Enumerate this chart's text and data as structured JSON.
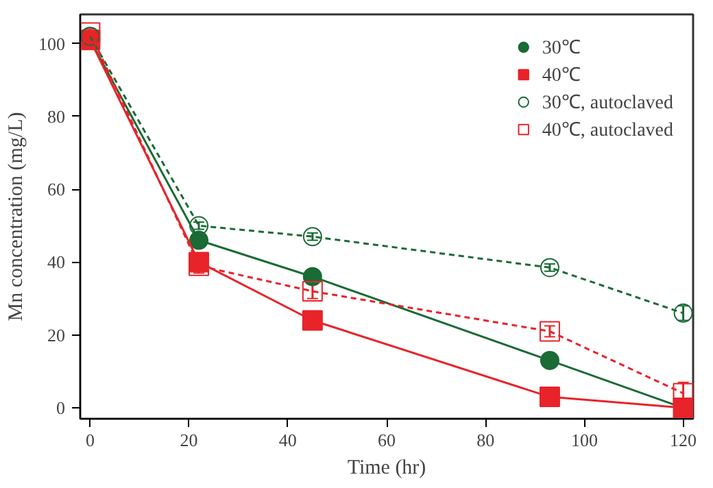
{
  "chart_data": {
    "type": "line",
    "xlabel": "Time (hr)",
    "ylabel": "Mn concentration (mg/L)",
    "xlim": [
      -2,
      122
    ],
    "xticks": [
      0,
      20,
      40,
      60,
      80,
      100,
      120
    ],
    "ylim": [
      -3,
      108
    ],
    "yticks": [
      0,
      20,
      40,
      60,
      80,
      100
    ],
    "grid": false,
    "legend": "top right",
    "series": [
      {
        "name": "30℃",
        "color": "#1a6b35",
        "x": [
          0,
          22,
          45,
          93,
          120
        ],
        "values": [
          101,
          46,
          36,
          13,
          0
        ],
        "marker": "circle",
        "line_style": "solid"
      },
      {
        "name": "40℃",
        "color": "#e8232a",
        "x": [
          0,
          22,
          45,
          93,
          120
        ],
        "values": [
          101,
          40,
          24,
          3,
          0
        ],
        "marker": "square",
        "line_style": "solid"
      },
      {
        "name": "30℃, autoclaved",
        "color": "#1a6b35",
        "x": [
          0,
          22,
          45,
          93,
          120
        ],
        "values": [
          102,
          50,
          47,
          38.5,
          26
        ],
        "errors": [
          1,
          1,
          1,
          1,
          2
        ],
        "marker": "circle",
        "line_style": "dashed"
      },
      {
        "name": "40℃, autoclaved",
        "color": "#e8232a",
        "x": [
          0,
          22,
          45,
          93,
          120
        ],
        "values": [
          103,
          39,
          32,
          21,
          4
        ],
        "errors": [
          1,
          2,
          2,
          1.5,
          3
        ],
        "marker": "square",
        "line_style": "dashed"
      }
    ]
  }
}
